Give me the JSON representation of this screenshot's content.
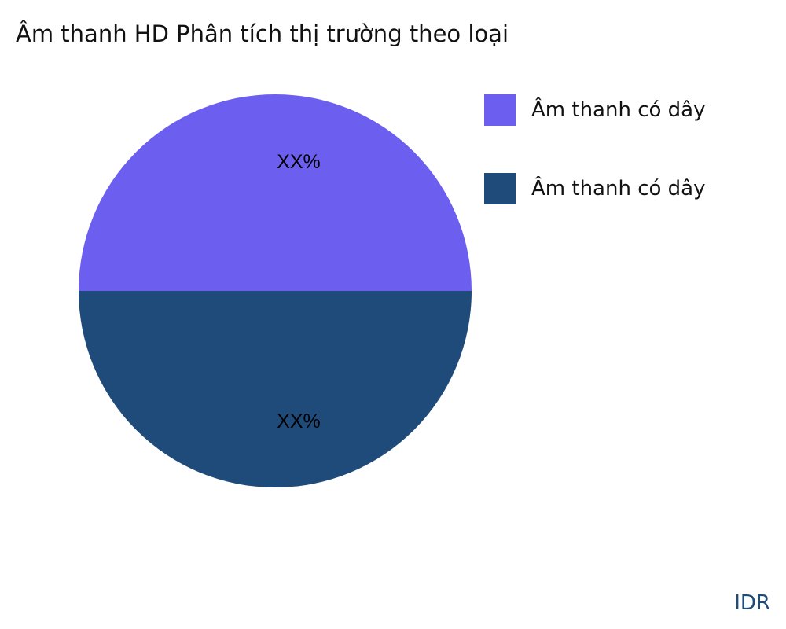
{
  "chart_data": {
    "type": "pie",
    "title": "Âm thanh HD Phân tích thị trường theo loại",
    "slices": [
      {
        "name": "Âm thanh có dây",
        "value": 50,
        "label": "XX%",
        "color": "#6c5ff0"
      },
      {
        "name": "Âm thanh có dây",
        "value": 50,
        "label": "XX%",
        "color": "#1f4b7a"
      }
    ],
    "legend_position": "right"
  },
  "watermark": "IDR"
}
